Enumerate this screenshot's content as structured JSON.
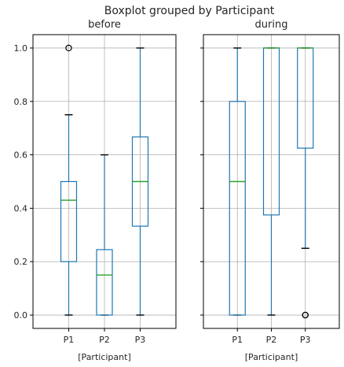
{
  "chart_data": {
    "type": "boxplot",
    "title": "Boxplot grouped by Participant",
    "ylim": [
      -0.05,
      1.05
    ],
    "yticks": [
      0.0,
      0.2,
      0.4,
      0.6,
      0.8,
      1.0
    ],
    "ytick_labels": [
      "0.0",
      "0.2",
      "0.4",
      "0.6",
      "0.8",
      "1.0"
    ],
    "grid": true,
    "colors": {
      "box": "#1f77b4",
      "median": "#2ca02c",
      "grid": "#b0b0b0",
      "axes": "#000000"
    },
    "panels": [
      {
        "title": "before",
        "xlabel": "[Participant]",
        "categories": [
          "P1",
          "P2",
          "P3"
        ],
        "boxes": [
          {
            "whisker_low": 0.0,
            "q1": 0.2,
            "median": 0.43,
            "q3": 0.5,
            "whisker_high": 0.75,
            "outliers": [
              1.0
            ]
          },
          {
            "whisker_low": 0.0,
            "q1": 0.0,
            "median": 0.15,
            "q3": 0.245,
            "whisker_high": 0.6,
            "outliers": []
          },
          {
            "whisker_low": 0.0,
            "q1": 0.333,
            "median": 0.5,
            "q3": 0.667,
            "whisker_high": 1.0,
            "outliers": []
          }
        ]
      },
      {
        "title": "during",
        "xlabel": "[Participant]",
        "categories": [
          "P1",
          "P2",
          "P3"
        ],
        "boxes": [
          {
            "whisker_low": 0.0,
            "q1": 0.0,
            "median": 0.5,
            "q3": 0.8,
            "whisker_high": 1.0,
            "outliers": []
          },
          {
            "whisker_low": 0.0,
            "q1": 0.375,
            "median": 1.0,
            "q3": 1.0,
            "whisker_high": 1.0,
            "outliers": []
          },
          {
            "whisker_low": 0.25,
            "q1": 0.625,
            "median": 1.0,
            "q3": 1.0,
            "whisker_high": 1.0,
            "outliers": [
              0.0,
              0.0
            ]
          }
        ]
      }
    ]
  }
}
